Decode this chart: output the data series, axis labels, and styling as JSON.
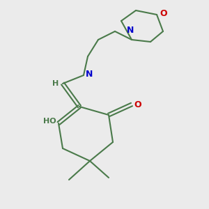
{
  "bg_color": "#ebebeb",
  "bond_color": "#4a7a4a",
  "N_color": "#0000cc",
  "O_color": "#cc0000",
  "bond_width": 1.5,
  "fig_w": 3.0,
  "fig_h": 3.0,
  "dpi": 100,
  "xlim": [
    0,
    10
  ],
  "ylim": [
    0,
    10
  ]
}
